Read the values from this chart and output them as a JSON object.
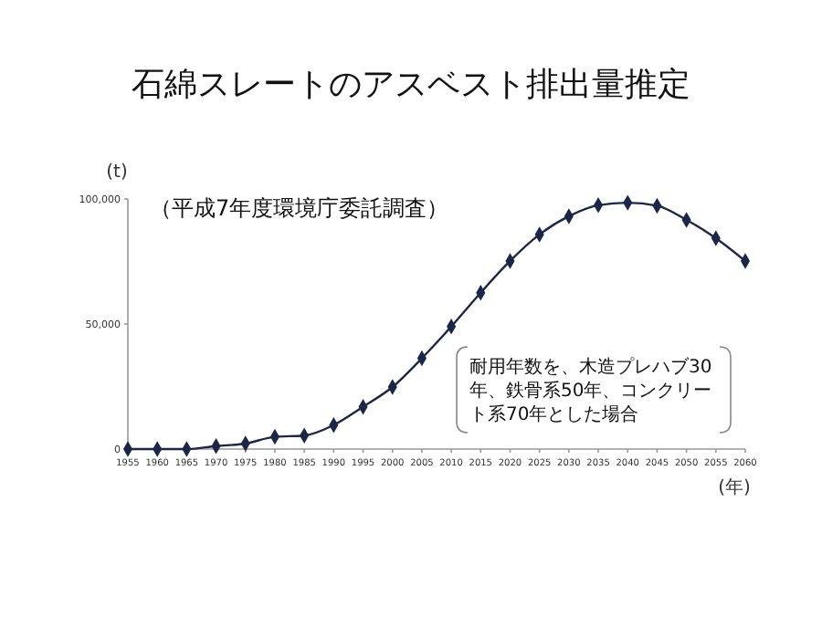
{
  "chart_data": {
    "type": "line",
    "title": "石綿スレートのアスベスト排出量推定",
    "ylabel": "(t)",
    "xlabel": "(年)",
    "x": [
      1955,
      1960,
      1965,
      1970,
      1975,
      1980,
      1985,
      1990,
      1995,
      2000,
      2005,
      2010,
      2015,
      2020,
      2025,
      2030,
      2035,
      2040,
      2045,
      2050,
      2055,
      2060
    ],
    "series": [
      {
        "color": "#1c2648",
        "values": [
          0,
          0,
          0,
          1200,
          2200,
          4900,
          5400,
          9600,
          16900,
          24800,
          36300,
          49000,
          62500,
          75200,
          85800,
          93100,
          97500,
          98500,
          97300,
          91600,
          84300,
          75200
        ]
      }
    ],
    "xlim": [
      1955,
      2060
    ],
    "xticks": [
      1955,
      1960,
      1965,
      1970,
      1975,
      1980,
      1985,
      1990,
      1995,
      2000,
      2005,
      2010,
      2015,
      2020,
      2025,
      2030,
      2035,
      2040,
      2045,
      2050,
      2055,
      2060
    ],
    "ylim": [
      0,
      100000
    ],
    "yticks": [
      {
        "value": 0,
        "label": "0"
      },
      {
        "value": 50000,
        "label": "50,000"
      },
      {
        "value": 100000,
        "label": "100,000"
      }
    ],
    "marker": "diamond",
    "line_style": "solid",
    "grid": false,
    "annotations": [
      "（平成7年度環境庁委託調査）",
      "耐用年数を、木造プレハブ30年、鉄骨系50年、コンクリート系70年とした場合"
    ]
  }
}
